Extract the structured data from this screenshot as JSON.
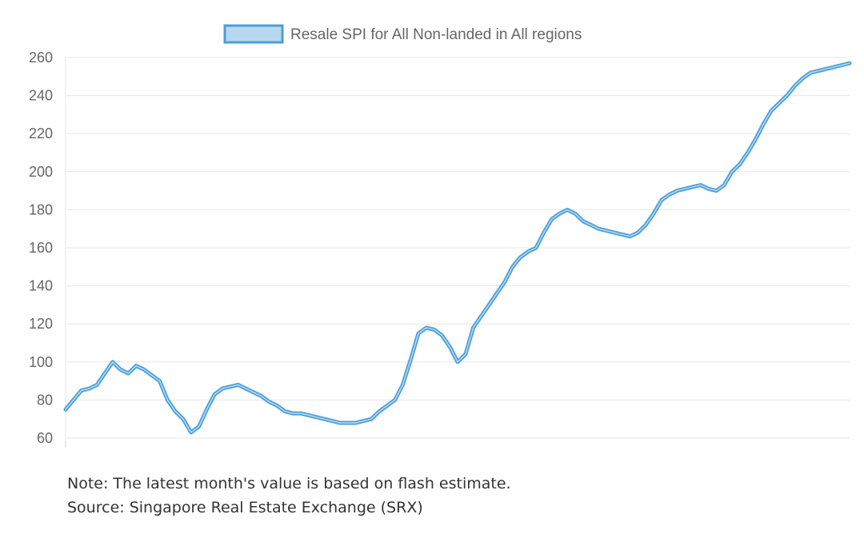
{
  "chart_data": {
    "type": "line",
    "title": "",
    "xlabel": "",
    "ylabel": "",
    "legend": "top-center",
    "grid": "horizontal",
    "ylim": [
      60,
      260
    ],
    "yticks": [
      60,
      80,
      100,
      120,
      140,
      160,
      180,
      200,
      220,
      240,
      260
    ],
    "series": [
      {
        "name": "Resale SPI for All Non-landed in All regions",
        "color": "#4a9fd8",
        "fill": "#b8d8f2",
        "x": [
          0,
          1,
          2,
          3,
          4,
          5,
          6,
          7,
          8,
          9,
          10,
          11,
          12,
          13,
          14,
          15,
          16,
          17,
          18,
          19,
          20,
          21,
          22,
          23,
          24,
          25,
          26,
          27,
          28,
          29,
          30,
          31,
          32,
          33,
          34,
          35,
          36,
          37,
          38,
          39,
          40,
          41,
          42,
          43,
          44,
          45,
          46,
          47,
          48,
          49,
          50,
          51,
          52,
          53,
          54,
          55,
          56,
          57,
          58,
          59,
          60,
          61,
          62,
          63,
          64,
          65,
          66,
          67,
          68,
          69,
          70,
          71,
          72,
          73,
          74,
          75,
          76,
          77,
          78,
          79,
          80,
          81,
          82,
          83,
          84,
          85,
          86,
          87,
          88,
          89,
          90,
          91,
          92,
          93,
          94,
          95,
          96,
          97,
          98,
          99,
          100
        ],
        "y": [
          75,
          80,
          85,
          86,
          88,
          94,
          100,
          96,
          94,
          98,
          96,
          93,
          90,
          80,
          74,
          70,
          63,
          66,
          75,
          83,
          86,
          87,
          88,
          86,
          84,
          82,
          79,
          77,
          74,
          73,
          73,
          72,
          71,
          70,
          69,
          68,
          68,
          68,
          69,
          70,
          74,
          77,
          80,
          88,
          101,
          115,
          118,
          117,
          114,
          108,
          100,
          104,
          118,
          124,
          130,
          136,
          142,
          150,
          155,
          158,
          160,
          168,
          175,
          178,
          180,
          178,
          174,
          172,
          170,
          169,
          168,
          167,
          166,
          168,
          172,
          178,
          185,
          188,
          190,
          191,
          192,
          193,
          191,
          190,
          193,
          200,
          204,
          210,
          217,
          225,
          232,
          236,
          240,
          245,
          249,
          252,
          253,
          254,
          255,
          256,
          257
        ]
      }
    ]
  },
  "notes": {
    "line1": "Note: The latest month's value is based on flash estimate.",
    "line2": "Source: Singapore Real Estate Exchange (SRX)"
  }
}
